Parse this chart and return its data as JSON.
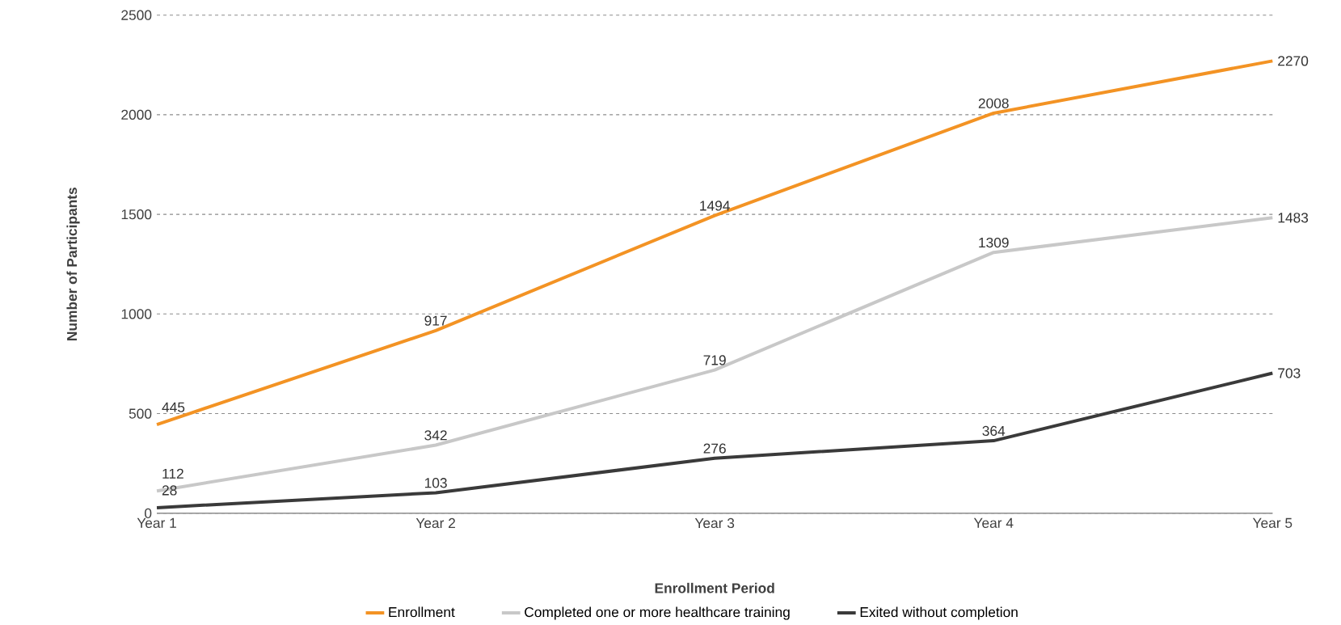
{
  "chart_data": {
    "type": "line",
    "xlabel": "Enrollment Period",
    "ylabel": "Number of Participants",
    "categories": [
      "Year 1",
      "Year 2",
      "Year 3",
      "Year 4",
      "Year 5"
    ],
    "series": [
      {
        "name": "Enrollment",
        "color": "#f39324",
        "values": [
          445,
          917,
          1494,
          2008,
          2270
        ]
      },
      {
        "name": "Completed one or more healthcare training",
        "color": "#c8c8c8",
        "values": [
          112,
          342,
          719,
          1309,
          1483
        ]
      },
      {
        "name": "Exited without completion",
        "color": "#3a3a3a",
        "values": [
          28,
          103,
          276,
          364,
          703
        ]
      }
    ],
    "ylim": [
      0,
      2500
    ],
    "yticks": [
      0,
      500,
      1000,
      1500,
      2000,
      2500
    ],
    "grid": "y",
    "legend": "bottom",
    "data_labels": true,
    "marker": "none",
    "line_style": "solid"
  }
}
